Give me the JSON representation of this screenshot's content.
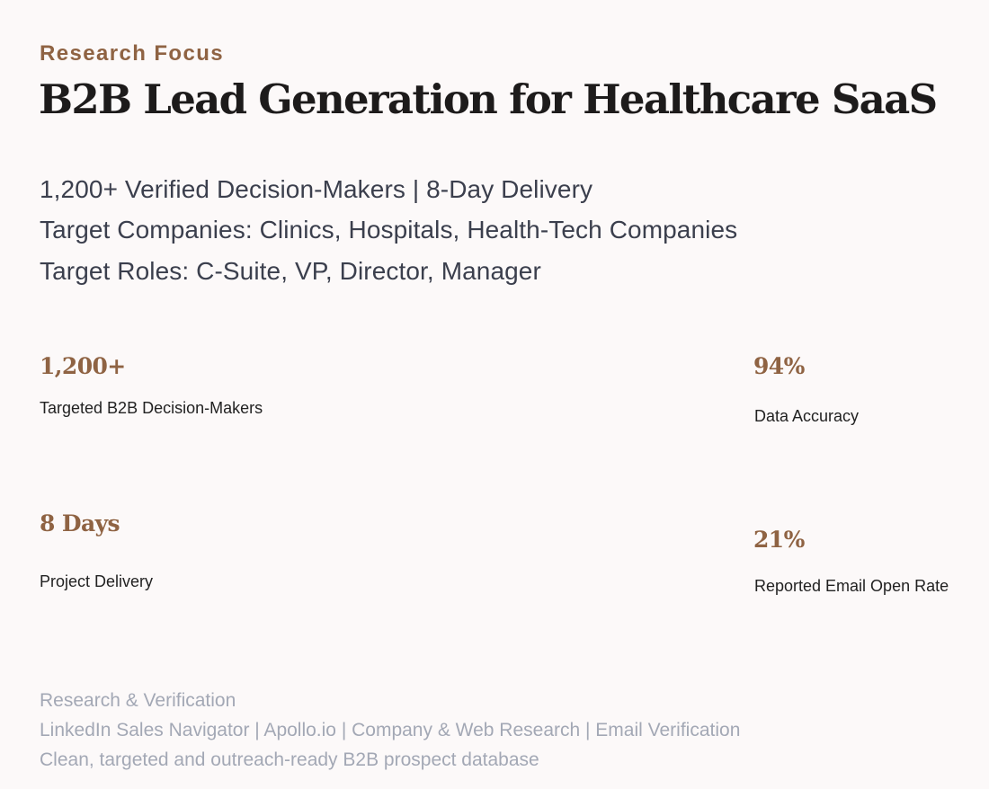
{
  "header": {
    "eyebrow": "Research Focus",
    "title": "B2B Lead Generation for Healthcare SaaS"
  },
  "summary": {
    "line1": "1,200+ Verified Decision-Makers | 8-Day Delivery",
    "line2": "Target Companies: Clinics, Hospitals, Health-Tech Companies",
    "line3": "Target Roles: C-Suite, VP, Director, Manager"
  },
  "stats": [
    {
      "value": "1,200+",
      "label": "Targeted B2B Decision-Makers"
    },
    {
      "value": "94%",
      "label": "Data Accuracy"
    },
    {
      "value": "8 Days",
      "label": "Project Delivery"
    },
    {
      "value": "21%",
      "label": "Reported Email Open Rate"
    }
  ],
  "footer": {
    "heading": "Research & Verification",
    "tools": "LinkedIn Sales Navigator | Apollo.io | Company & Web Research | Email Verification",
    "outcome": "Clean, targeted and outreach-ready B2B prospect database"
  },
  "colors": {
    "accent": "#8f6343",
    "title": "#1d1b1b",
    "body": "#3b3f4d",
    "muted": "#a3a8b5",
    "background": "#fcf9f9"
  }
}
